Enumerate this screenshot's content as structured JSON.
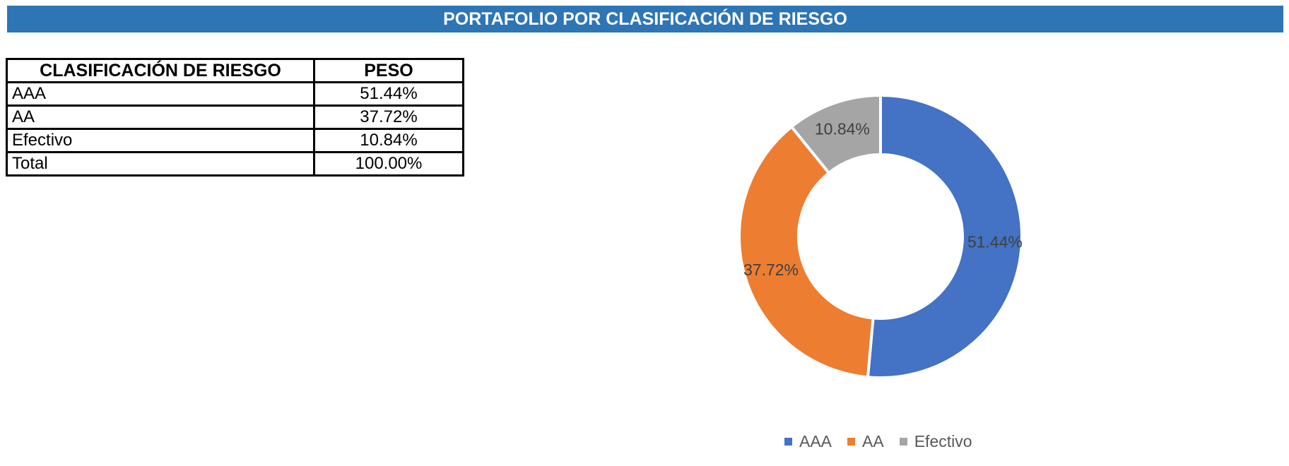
{
  "title": "PORTAFOLIO POR CLASIFICACIÓN DE RIESGO",
  "table": {
    "headers": [
      "CLASIFICACIÓN DE RIESGO",
      "PESO"
    ],
    "rows": [
      {
        "label": "AAA",
        "value": "51.44%"
      },
      {
        "label": "AA",
        "value": "37.72%"
      },
      {
        "label": "Efectivo",
        "value": "10.84%"
      },
      {
        "label": "Total",
        "value": "100.00%"
      }
    ]
  },
  "chart_data": {
    "type": "pie",
    "style": "donut",
    "categories": [
      "AAA",
      "AA",
      "Efectivo"
    ],
    "values": [
      51.44,
      37.72,
      10.84
    ],
    "data_labels": [
      "51.44%",
      "37.72%",
      "10.84%"
    ],
    "colors": [
      "#4472c4",
      "#ed7d31",
      "#a5a5a5"
    ],
    "legend_position": "bottom"
  }
}
